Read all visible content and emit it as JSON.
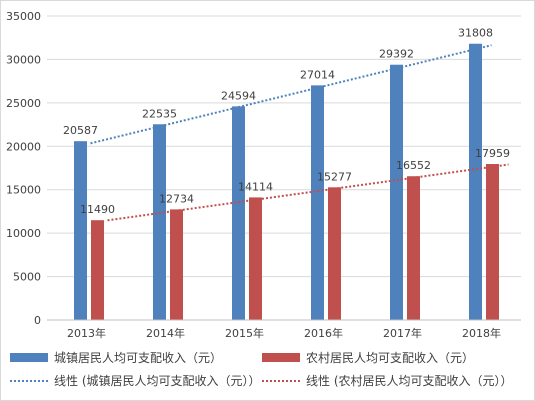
{
  "chart_data": {
    "type": "bar",
    "title": "",
    "xlabel": "",
    "ylabel": "",
    "categories": [
      "2013年",
      "2014年",
      "2015年",
      "2016年",
      "2017年",
      "2018年"
    ],
    "ylim": [
      0,
      35000
    ],
    "yticks": [
      0,
      5000,
      10000,
      15000,
      20000,
      25000,
      30000,
      35000
    ],
    "grid": true,
    "legend_position": "bottom",
    "series": [
      {
        "name": "城镇居民人均可支配收入（元）",
        "color": "#4f81bd",
        "values": [
          20587,
          22535,
          24594,
          27014,
          29392,
          31808
        ]
      },
      {
        "name": "农村居民人均可支配收入（元）",
        "color": "#c0504d",
        "values": [
          11490,
          12734,
          14114,
          15277,
          16552,
          17959
        ]
      }
    ],
    "trendlines": [
      {
        "name": "线性 (城镇居民人均可支配收入（元））",
        "series_index": 0,
        "type": "linear",
        "style": "dotted",
        "color": "#4f81bd"
      },
      {
        "name": "线性 (农村居民人均可支配收入（元））",
        "series_index": 1,
        "type": "linear",
        "style": "dotted",
        "color": "#c0504d"
      }
    ]
  }
}
